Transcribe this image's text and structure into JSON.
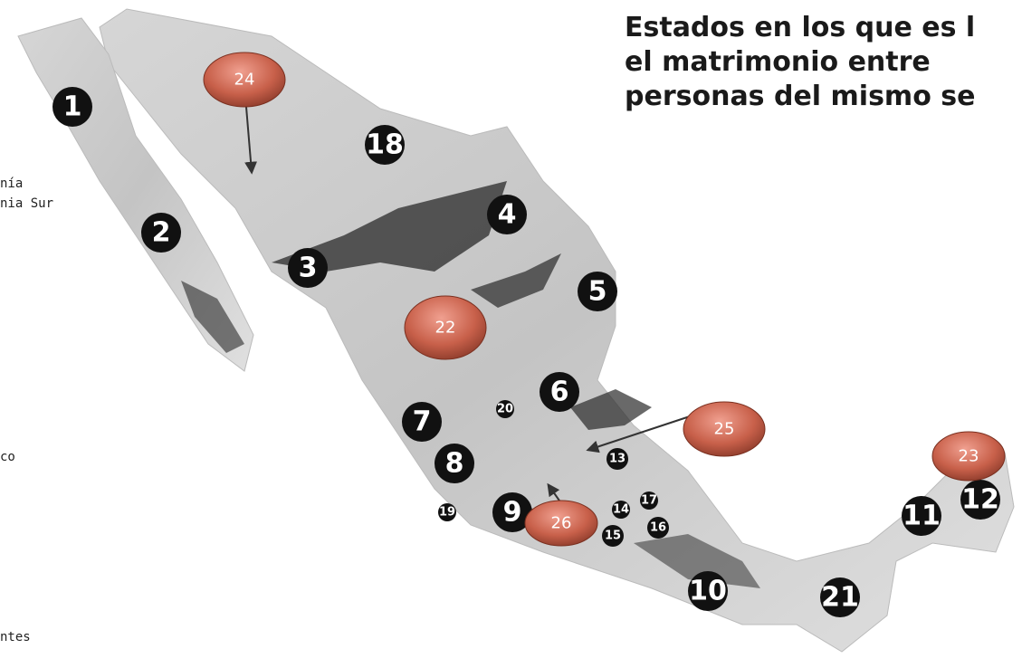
{
  "title_lines": [
    "Estados en los que es l",
    "el matrimonio entre",
    "personas del mismo se"
  ],
  "side_labels": [
    "nía",
    "nia Sur",
    "co",
    "ntes"
  ],
  "markers": [
    "1",
    "2",
    "3",
    "4",
    "5",
    "6",
    "7",
    "8",
    "9",
    "10",
    "11",
    "12",
    "13",
    "14",
    "15",
    "16",
    "17",
    "18",
    "19",
    "20",
    "21"
  ],
  "bubbles": [
    "24",
    "22",
    "25",
    "23",
    "26"
  ]
}
